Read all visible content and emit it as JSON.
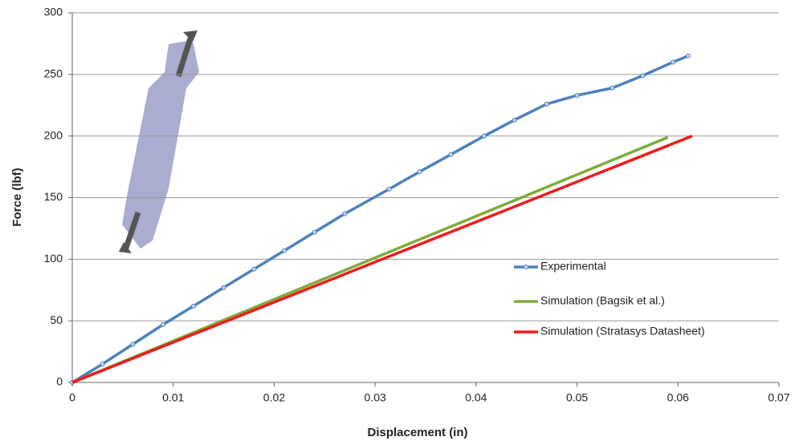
{
  "chart_data": {
    "type": "line",
    "x_label": "Displacement (in)",
    "y_label": "Force (lbf)",
    "xlim": [
      0,
      0.07
    ],
    "xticks": [
      0,
      0.01,
      0.02,
      0.03,
      0.04,
      0.05,
      0.06,
      0.07
    ],
    "ylim": [
      0,
      300
    ],
    "yticks": [
      0,
      50,
      100,
      150,
      200,
      250,
      300
    ],
    "grid": true,
    "legend": "right",
    "series": [
      {
        "name": "Experimental",
        "color": "#4f81bd",
        "markers": true,
        "x": [
          0,
          0.003,
          0.006,
          0.009,
          0.012,
          0.015,
          0.018,
          0.021,
          0.024,
          0.027,
          0.0314,
          0.0344,
          0.0375,
          0.0408,
          0.0438,
          0.047,
          0.05,
          0.0535,
          0.0565,
          0.0595,
          0.061
        ],
        "values": [
          0,
          15,
          31,
          47,
          62,
          77,
          92,
          107,
          122,
          137,
          157,
          171,
          185,
          200,
          213,
          226,
          233,
          239,
          249,
          260,
          265
        ]
      },
      {
        "name": "Simulation (Bagsik et al.)",
        "color": "#7fab3a",
        "markers": false,
        "x": [
          0,
          0.059
        ],
        "values": [
          0,
          199
        ]
      },
      {
        "name": "Simulation (Stratasys Datasheet)",
        "color": "#ee1c1c",
        "markers": false,
        "x": [
          0,
          0.0614
        ],
        "values": [
          0,
          200
        ]
      }
    ]
  }
}
